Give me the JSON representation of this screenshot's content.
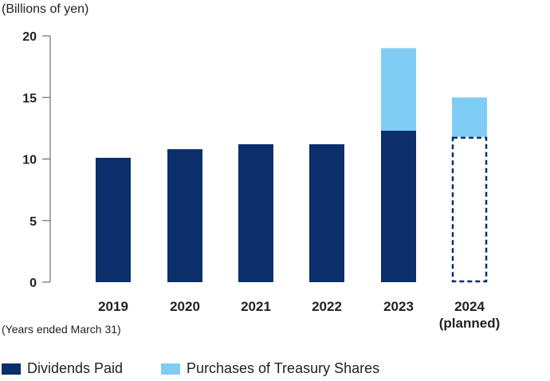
{
  "chart_data": {
    "type": "bar",
    "stacked": true,
    "ylabel": "(Billions of yen)",
    "xnote": "(Years ended March 31)",
    "ylim": [
      0,
      20
    ],
    "yticks": [
      0,
      5,
      10,
      15,
      20
    ],
    "grid": false,
    "legend_position": "bottom",
    "categories": [
      [
        "2019"
      ],
      [
        "2020"
      ],
      [
        "2021"
      ],
      [
        "2022"
      ],
      [
        "2023"
      ],
      [
        "2024",
        "(planned)"
      ]
    ],
    "series": [
      {
        "name": "Dividends Paid",
        "color": "#0b2f6a",
        "values": [
          10.1,
          10.8,
          11.2,
          11.2,
          12.3,
          11.8
        ],
        "planned": [
          false,
          false,
          false,
          false,
          false,
          true
        ]
      },
      {
        "name": "Purchases of Treasury Shares",
        "color": "#7fcdf5",
        "values": [
          0,
          0,
          0,
          0,
          6.7,
          3.2
        ],
        "planned": [
          false,
          false,
          false,
          false,
          false,
          false
        ]
      }
    ]
  }
}
